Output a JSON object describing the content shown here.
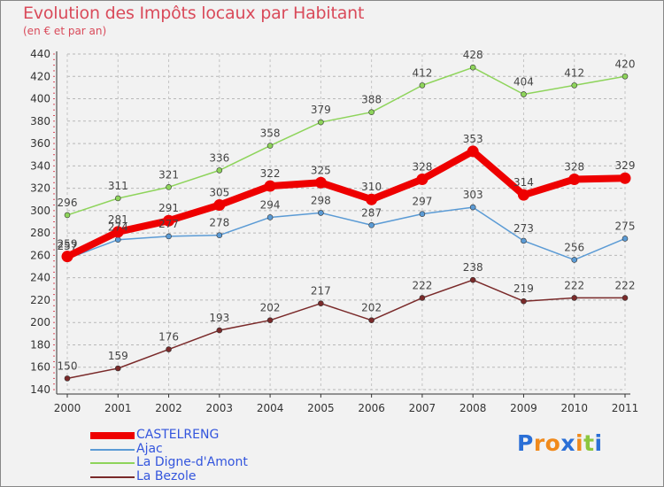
{
  "header": {
    "title": "Evolution des Impôts locaux par Habitant",
    "subtitle": "(en € et par an)"
  },
  "brand": {
    "letters": [
      "P",
      "r",
      "o",
      "x",
      "i",
      "t",
      "i"
    ],
    "colors": [
      "#2a6fd6",
      "#f08a1c",
      "#f08a1c",
      "#2a6fd6",
      "#f08a1c",
      "#8cc63f",
      "#2a6fd6"
    ]
  },
  "chart_data": {
    "type": "line",
    "categories": [
      "2000",
      "2001",
      "2002",
      "2003",
      "2004",
      "2005",
      "2006",
      "2007",
      "2008",
      "2009",
      "2010",
      "2011"
    ],
    "ylim": [
      140,
      440
    ],
    "yticks": [
      "140",
      "160",
      "180",
      "200",
      "220",
      "240",
      "260",
      "280",
      "300",
      "320",
      "340",
      "360",
      "380",
      "400",
      "420",
      "440"
    ],
    "grid": "horizontal dashed",
    "legend_position": "bottom-left",
    "series": [
      {
        "name": "CASTELRENG",
        "color": "#ee0000",
        "values": [
          259,
          281,
          291,
          305,
          322,
          325,
          310,
          328,
          353,
          314,
          328,
          329
        ],
        "labels": [
          "259",
          "281",
          "291",
          "305",
          "322",
          "325",
          "310",
          "328",
          "353",
          "314",
          "328",
          "329"
        ]
      },
      {
        "name": "Ajac",
        "color": "#5b9bd5",
        "values": [
          257,
          274,
          277,
          278,
          294,
          298,
          287,
          297,
          303,
          273,
          256,
          275
        ],
        "labels": [
          "257",
          "274",
          "277",
          "278",
          "294",
          "298",
          "287",
          "297",
          "303",
          "273",
          "256",
          "275"
        ]
      },
      {
        "name": "La Digne-d'Amont",
        "color": "#8ed45b",
        "values": [
          296,
          311,
          321,
          336,
          358,
          379,
          388,
          412,
          428,
          404,
          412,
          420
        ],
        "labels": [
          "296",
          "311",
          "321",
          "336",
          "358",
          "379",
          "388",
          "412",
          "428",
          "404",
          "412",
          "420"
        ]
      },
      {
        "name": "La Bezole",
        "color": "#7a2a2a",
        "values": [
          150,
          159,
          176,
          193,
          202,
          217,
          202,
          222,
          238,
          219,
          222,
          222
        ],
        "labels": [
          "150",
          "159",
          "176",
          "193",
          "202",
          "217",
          "202",
          "222",
          "238",
          "219",
          "222",
          "222"
        ]
      }
    ]
  }
}
